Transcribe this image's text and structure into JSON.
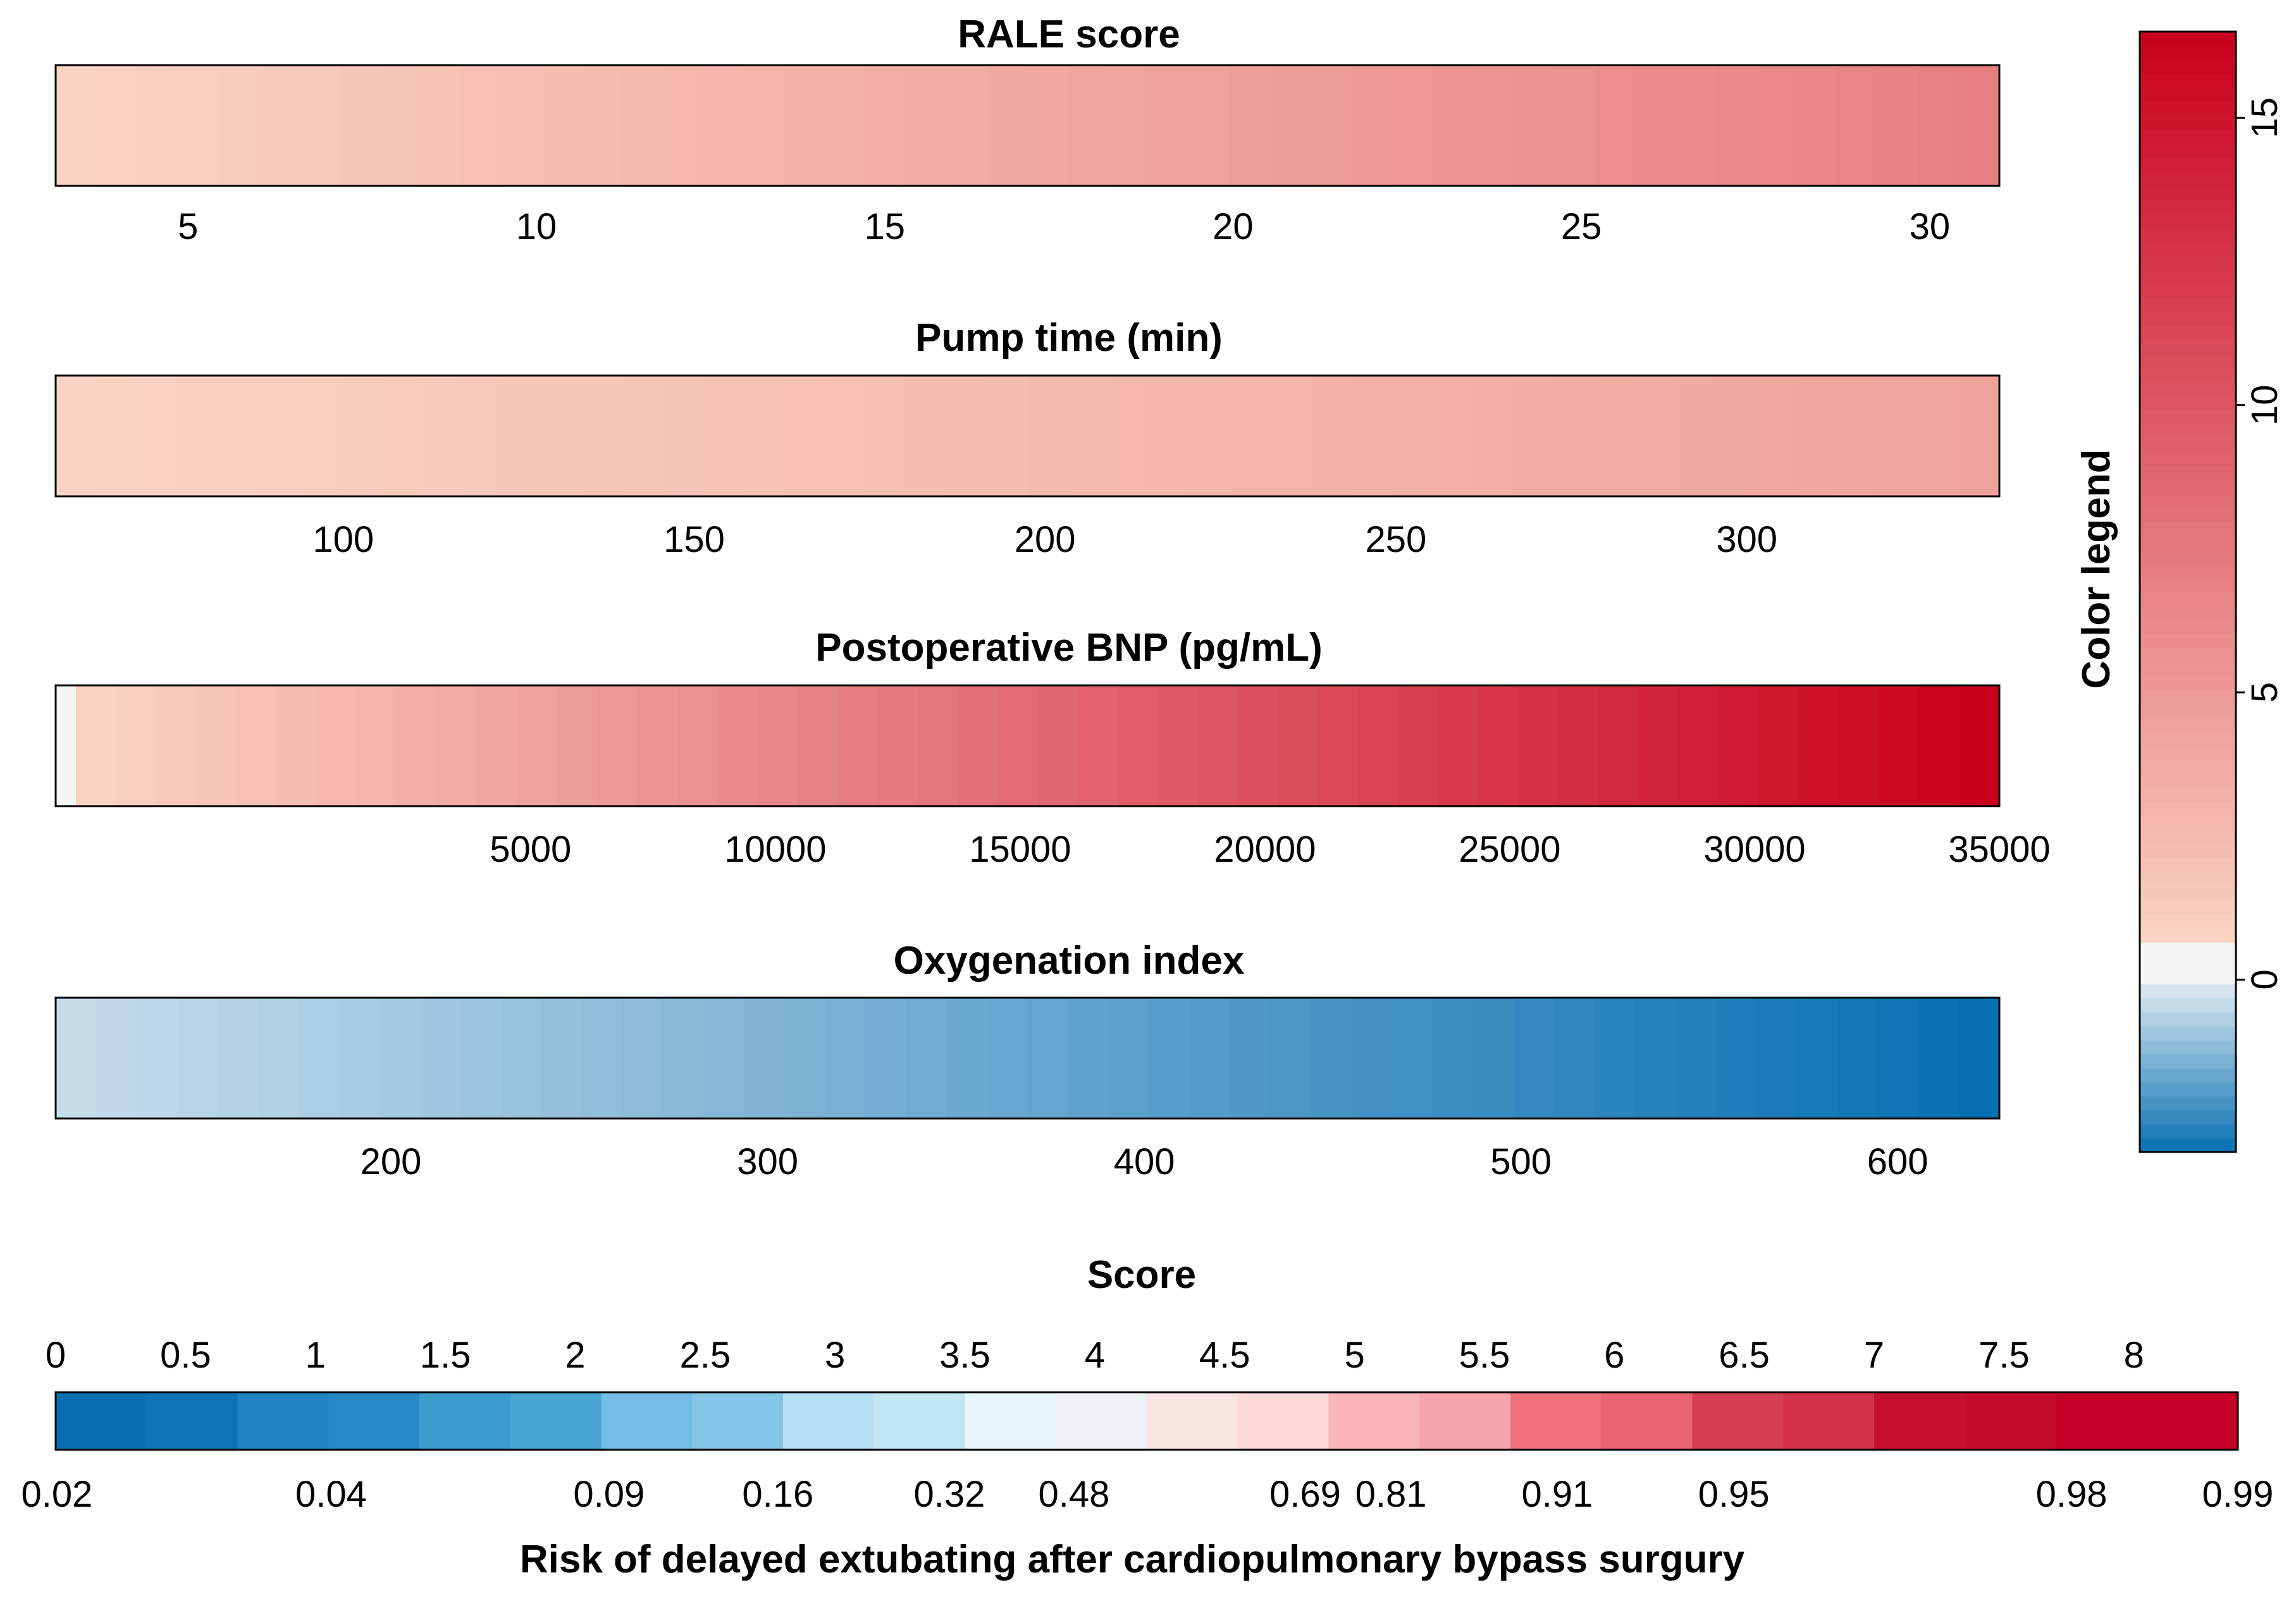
{
  "chart_data": {
    "type": "nomogram-colorbars",
    "variables": [
      {
        "name": "rale",
        "title": "RALE score",
        "range": [
          3.1,
          31.0
        ],
        "ticks": [
          5,
          10,
          15,
          20,
          25,
          30
        ],
        "tick_labels": [
          "5",
          "10",
          "15",
          "20",
          "25",
          "30"
        ],
        "color_start": "#fad3c2",
        "color_end": "#e77f80",
        "leading_band": null
      },
      {
        "name": "pump",
        "title": "Pump time (min)",
        "range": [
          59,
          336
        ],
        "ticks": [
          100,
          150,
          200,
          250,
          300
        ],
        "tick_labels": [
          "100",
          "150",
          "200",
          "250",
          "300"
        ],
        "color_start": "#fad3c2",
        "color_end": "#efa39b",
        "leading_band": null
      },
      {
        "name": "bnp",
        "title": "Postoperative BNP (pg/mL)",
        "range": [
          -4700,
          35000
        ],
        "ticks": [
          5000,
          10000,
          15000,
          20000,
          25000,
          30000,
          35000
        ],
        "tick_labels": [
          "5000",
          "10000",
          "15000",
          "20000",
          "25000",
          "30000",
          "35000"
        ],
        "color_start": "#fad3c2",
        "color_end": "#c9001e",
        "leading_band": "#f5f5f5"
      },
      {
        "name": "oxy",
        "title": "Oxygenation index",
        "range": [
          111,
          627
        ],
        "ticks": [
          200,
          300,
          400,
          500,
          600
        ],
        "tick_labels": [
          "200",
          "300",
          "400",
          "500",
          "600"
        ],
        "color_start": "#c4dcea",
        "color_end": "#0770b2",
        "leading_band": null
      }
    ],
    "color_legend": {
      "label": "Color legend",
      "range": [
        -3,
        16.5
      ],
      "ticks": [
        0,
        5,
        10,
        15
      ],
      "tick_labels": [
        "0",
        "5",
        "10",
        "15"
      ],
      "colors": {
        "low": "#0770b2",
        "zero": "#f5f5f5",
        "mid": "#fad3c2",
        "high": "#c9001e"
      }
    },
    "score_scale": {
      "title": "Score",
      "range": [
        0,
        8.4
      ],
      "ticks": [
        0,
        0.5,
        1,
        1.5,
        2,
        2.5,
        3,
        3.5,
        4,
        4.5,
        5,
        5.5,
        6,
        6.5,
        7,
        7.5,
        8
      ],
      "tick_labels": [
        "0",
        "0.5",
        "1",
        "1.5",
        "2",
        "2.5",
        "3",
        "3.5",
        "4",
        "4.5",
        "5",
        "5.5",
        "6",
        "6.5",
        "7",
        "7.5",
        "8"
      ]
    },
    "risk_scale": {
      "title": "Risk of delayed extubating after cardiopulmonary bypass surgury",
      "score_positions": [
        0,
        1.06,
        2.13,
        2.78,
        3.44,
        3.92,
        4.81,
        5.14,
        5.78,
        6.46,
        7.76,
        8.4
      ],
      "tick_labels": [
        "0.02",
        "0.04",
        "0.09",
        "0.16",
        "0.32",
        "0.48",
        "0.69",
        "0.81",
        "0.91",
        "0.95",
        "0.98",
        "0.99"
      ],
      "colors": [
        "#0770b2",
        "#1f83c0",
        "#3b9bcf",
        "#72bde3",
        "#b5dff2",
        "#e8f5fa",
        "#fbe4e4",
        "#f9b5ba",
        "#ef6f7c",
        "#d63d50",
        "#c40f2e",
        "#c40027"
      ]
    }
  }
}
